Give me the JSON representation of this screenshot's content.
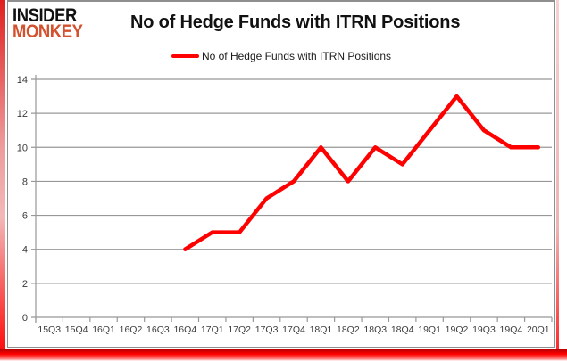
{
  "header": {
    "logo_line1": "INSIDER",
    "logo_line2": "MONKEY",
    "title": "No of Hedge Funds with ITRN Positions"
  },
  "legend": {
    "label": "No of Hedge Funds with ITRN Positions",
    "color": "#ff0000"
  },
  "colors": {
    "line": "#ff0000",
    "grid": "#989898",
    "axis_text": "#3a3a3a",
    "logo_accent": "#d4512e",
    "frame_red": "#ff0000",
    "frame_gray": "#8f8f8f"
  },
  "chart_data": {
    "type": "line",
    "title": "No of Hedge Funds with ITRN Positions",
    "categories": [
      "15Q3",
      "15Q4",
      "16Q1",
      "16Q2",
      "16Q3",
      "16Q4",
      "17Q1",
      "17Q2",
      "17Q3",
      "17Q4",
      "18Q1",
      "18Q2",
      "18Q3",
      "18Q4",
      "19Q1",
      "19Q2",
      "19Q3",
      "19Q4",
      "20Q1"
    ],
    "series": [
      {
        "name": "No of Hedge Funds with ITRN Positions",
        "color": "#ff0000",
        "values": [
          null,
          null,
          null,
          null,
          null,
          4,
          5,
          5,
          7,
          8,
          10,
          8,
          10,
          9,
          11,
          13,
          11,
          10,
          10
        ]
      }
    ],
    "ylim": [
      0,
      14
    ],
    "yticks": [
      0,
      2,
      4,
      6,
      8,
      10,
      12,
      14
    ],
    "grid": true,
    "legend_position": "top"
  }
}
